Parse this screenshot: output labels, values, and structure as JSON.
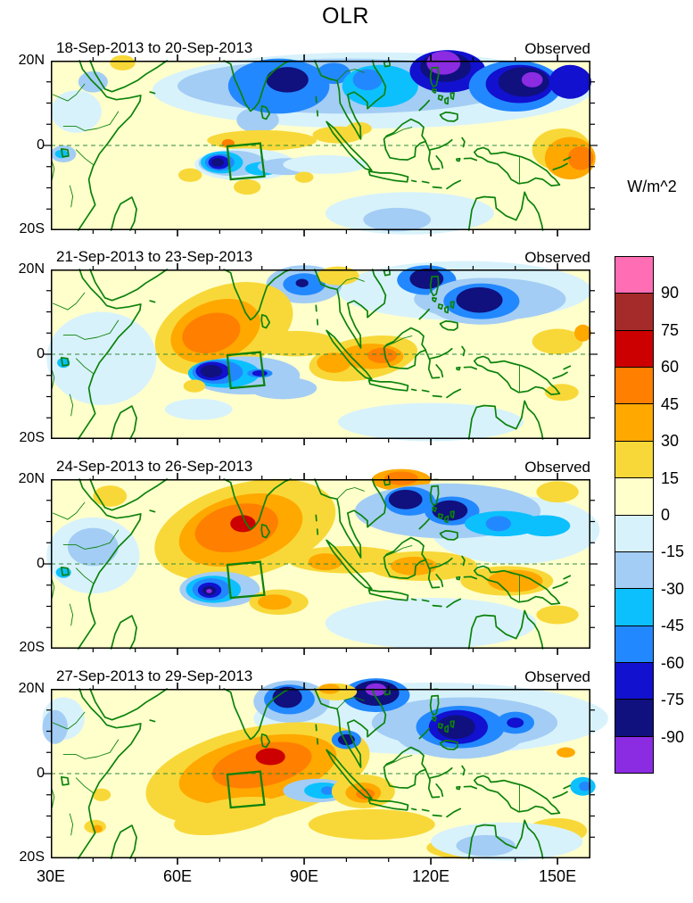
{
  "title": "OLR",
  "colorbar": {
    "units": "W/m^2",
    "tick_labels": [
      "90",
      "75",
      "60",
      "45",
      "30",
      "15",
      "0",
      "-15",
      "-30",
      "-45",
      "-60",
      "-75",
      "-90"
    ],
    "colors": [
      "#ff6eb4",
      "#a52a2a",
      "#cc0000",
      "#ff7f00",
      "#ffa800",
      "#f8d838",
      "#ffffcc",
      "#d8f2fb",
      "#a3cdf4",
      "#0cc0fe",
      "#2288ff",
      "#1111cf",
      "#10107e",
      "#8b2be2"
    ]
  },
  "axes": {
    "lon_range": [
      30,
      157.5
    ],
    "lat_range": [
      -20,
      20
    ],
    "xticks": [
      {
        "label": "30E",
        "lon": 30
      },
      {
        "label": "60E",
        "lon": 60
      },
      {
        "label": "90E",
        "lon": 90
      },
      {
        "label": "120E",
        "lon": 120
      },
      {
        "label": "150E",
        "lon": 150
      }
    ],
    "yticks": [
      {
        "label": "20N",
        "lat": 20
      },
      {
        "label": "0",
        "lat": 0
      },
      {
        "label": "20S",
        "lat": -20
      }
    ]
  },
  "chart_data": {
    "type": "heatmap",
    "title": "OLR",
    "units": "W/m^2",
    "levels": [
      90,
      75,
      60,
      45,
      30,
      15,
      0,
      -15,
      -30,
      -45,
      -60,
      -75,
      -90
    ],
    "region_box": {
      "corners_lon_lat": [
        [
          71.8,
          -0.2
        ],
        [
          79.6,
          0.5
        ],
        [
          80.6,
          -7.3
        ],
        [
          72.6,
          -8.0
        ]
      ]
    },
    "equator_line": 0,
    "panels": [
      {
        "subtitle": "18-Sep-2013 to 20-Sep-2013",
        "source_label": "Observed",
        "features": [
          [
            106,
            13,
            52,
            9,
            7
          ],
          [
            100,
            14,
            40,
            6.5,
            8
          ],
          [
            36,
            8,
            6,
            5,
            7
          ],
          [
            40,
            15,
            3.5,
            2.5,
            8
          ],
          [
            33,
            -2,
            3,
            2,
            8
          ],
          [
            32.5,
            -2,
            1.5,
            1,
            9
          ],
          [
            47,
            19.5,
            3,
            1.8,
            5
          ],
          [
            79,
            6,
            5,
            3,
            8
          ],
          [
            84,
            14,
            12,
            6.5,
            10
          ],
          [
            86,
            15.5,
            5,
            3,
            12
          ],
          [
            97,
            17,
            4,
            2.5,
            10
          ],
          [
            108,
            14,
            9,
            5,
            9
          ],
          [
            105,
            15.5,
            3.5,
            2.5,
            10
          ],
          [
            124,
            17.5,
            9,
            5,
            11
          ],
          [
            123.5,
            18.5,
            6,
            3.5,
            12
          ],
          [
            123,
            19.5,
            4,
            2.8,
            13
          ],
          [
            140,
            14,
            11,
            6,
            10
          ],
          [
            153,
            15,
            5,
            4,
            11
          ],
          [
            141,
            14.5,
            8,
            4.5,
            11
          ],
          [
            142,
            15,
            6,
            3.5,
            12
          ],
          [
            144,
            15.5,
            2.5,
            1.8,
            13
          ],
          [
            80,
            1.2,
            13,
            2.4,
            5
          ],
          [
            72,
            0.5,
            1.5,
            1,
            3
          ],
          [
            98,
            2.5,
            6,
            2,
            5
          ],
          [
            103,
            4,
            3,
            1.5,
            5
          ],
          [
            151,
            -1,
            7,
            5,
            5
          ],
          [
            153,
            -3,
            6,
            5,
            4
          ],
          [
            155.5,
            -3,
            3,
            2.8,
            3
          ],
          [
            76,
            -4.5,
            12,
            3.8,
            7
          ],
          [
            73,
            -4.2,
            8,
            3,
            8
          ],
          [
            70.5,
            -4,
            5,
            2.6,
            9
          ],
          [
            70,
            -4,
            3.5,
            2,
            10
          ],
          [
            69.8,
            -4,
            2.5,
            1.6,
            11
          ],
          [
            69.5,
            -4,
            1.5,
            1,
            12
          ],
          [
            80,
            -5.5,
            4,
            1.6,
            9
          ],
          [
            86,
            -5,
            7,
            2,
            8
          ],
          [
            95,
            -4.5,
            10,
            2.2,
            7
          ],
          [
            63,
            -7,
            2.8,
            1.6,
            5
          ],
          [
            76.5,
            -9.8,
            3.2,
            1.8,
            5
          ],
          [
            90,
            -7.5,
            2.2,
            1.3,
            5
          ],
          [
            115,
            -16,
            20,
            5,
            7
          ],
          [
            112,
            -17.5,
            8,
            2.8,
            8
          ]
        ]
      },
      {
        "subtitle": "21-Sep-2013 to 23-Sep-2013",
        "source_label": "Observed",
        "features": [
          [
            42,
            -1,
            13,
            11,
            7
          ],
          [
            128,
            15,
            30,
            7,
            7
          ],
          [
            134,
            13,
            18,
            5,
            8
          ],
          [
            33,
            -2,
            1.5,
            1.2,
            9
          ],
          [
            90,
            16.5,
            9,
            4.5,
            8
          ],
          [
            90,
            16.5,
            5,
            2.6,
            10
          ],
          [
            89.5,
            16.8,
            1.5,
            1,
            12
          ],
          [
            71,
            6,
            17,
            10,
            5,
            -20
          ],
          [
            69,
            5.5,
            11,
            7,
            4,
            -20
          ],
          [
            68,
            5,
            7,
            4.6,
            3,
            -15
          ],
          [
            88,
            2.5,
            10,
            3,
            5
          ],
          [
            98,
            18.5,
            5,
            2.2,
            5
          ],
          [
            76,
            -5,
            13,
            4.5,
            8
          ],
          [
            71,
            -4.5,
            8.5,
            3.4,
            9
          ],
          [
            69.5,
            -4.2,
            6,
            2.8,
            10
          ],
          [
            68.3,
            -4,
            4,
            2.2,
            11
          ],
          [
            68,
            -4,
            2.6,
            1.5,
            12
          ],
          [
            79.5,
            -4.5,
            3,
            1,
            10
          ],
          [
            79.5,
            -4.5,
            1.8,
            0.7,
            11
          ],
          [
            85,
            -8,
            8,
            2.6,
            8
          ],
          [
            64,
            -7.5,
            2.6,
            1.5,
            5
          ],
          [
            65,
            -13,
            8,
            2.5,
            7
          ],
          [
            119,
            17.5,
            7,
            3.5,
            10
          ],
          [
            119,
            17.8,
            4,
            2.4,
            12
          ],
          [
            132,
            12.5,
            13,
            5.5,
            8
          ],
          [
            132,
            12.5,
            9,
            4.2,
            10
          ],
          [
            131.5,
            12.8,
            5.5,
            3,
            12
          ],
          [
            104,
            -1,
            13,
            5,
            5,
            -10
          ],
          [
            106,
            -0.5,
            7.5,
            3,
            4
          ],
          [
            108.5,
            -0.3,
            3.5,
            1.8,
            3
          ],
          [
            97,
            -2,
            4,
            2.4,
            4
          ],
          [
            150,
            3,
            6,
            3,
            5
          ],
          [
            156,
            5,
            2,
            2,
            4
          ],
          [
            151,
            -9,
            4,
            2,
            5
          ],
          [
            120,
            -16,
            22,
            4.5,
            7
          ]
        ]
      },
      {
        "subtitle": "24-Sep-2013 to 26-Sep-2013",
        "source_label": "Observed",
        "features": [
          [
            40,
            2,
            11,
            9,
            7
          ],
          [
            140,
            8,
            20,
            8,
            7
          ],
          [
            120,
            -14,
            25,
            6,
            7
          ],
          [
            40,
            4,
            6,
            4.5,
            8
          ],
          [
            33,
            -2,
            1.8,
            1.3,
            9
          ],
          [
            44,
            16,
            4,
            2.5,
            5
          ],
          [
            76,
            8,
            22,
            11,
            5,
            -15
          ],
          [
            75,
            8,
            15,
            8,
            4,
            -15
          ],
          [
            74,
            8.5,
            10,
            5.5,
            3,
            -12
          ],
          [
            75.5,
            9.5,
            3,
            2,
            2
          ],
          [
            100,
            1,
            14,
            3.2,
            5
          ],
          [
            95,
            0.5,
            4,
            2,
            4
          ],
          [
            118,
            -0.5,
            13,
            3.5,
            5
          ],
          [
            116,
            -0.5,
            5.5,
            2.2,
            4
          ],
          [
            138,
            -4,
            11,
            3.5,
            5
          ],
          [
            140,
            -4,
            6.5,
            2.6,
            4
          ],
          [
            70,
            -6,
            9.5,
            4.2,
            8
          ],
          [
            68.5,
            -6,
            6.5,
            3.2,
            9
          ],
          [
            68,
            -6,
            4.5,
            2.6,
            10
          ],
          [
            67.6,
            -6.2,
            2.8,
            1.8,
            11
          ],
          [
            67.5,
            -6.3,
            1.6,
            1.1,
            12
          ],
          [
            67.5,
            -6.4,
            0.7,
            0.5,
            13
          ],
          [
            84,
            -9,
            7,
            3,
            5
          ],
          [
            83,
            -9,
            4,
            1.8,
            4
          ],
          [
            113,
            19.8,
            7,
            2.6,
            4
          ],
          [
            113,
            20.2,
            4,
            1.6,
            3
          ],
          [
            124,
            12.5,
            22,
            6.5,
            8
          ],
          [
            115,
            14.8,
            6,
            3.4,
            10
          ],
          [
            114,
            15.2,
            4,
            2.3,
            12
          ],
          [
            125,
            12.5,
            6.5,
            3.4,
            10
          ],
          [
            124.5,
            12.6,
            4.2,
            2.4,
            12
          ],
          [
            137,
            9.5,
            9,
            3,
            9
          ],
          [
            136,
            9.5,
            3,
            1.8,
            10
          ],
          [
            147,
            9,
            6,
            2.5,
            9
          ],
          [
            150,
            17,
            5,
            2.5,
            5
          ],
          [
            150,
            -12,
            5,
            2.2,
            5
          ]
        ]
      },
      {
        "subtitle": "27-Sep-2013 to 29-Sep-2013",
        "source_label": "Observed",
        "features": [
          [
            120,
            13,
            42,
            8.5,
            7
          ],
          [
            128,
            12,
            22,
            6,
            8
          ],
          [
            33,
            13,
            5,
            5,
            7
          ],
          [
            31,
            11,
            3,
            4,
            8
          ],
          [
            87,
            17,
            9,
            5,
            8
          ],
          [
            86.5,
            17.5,
            6,
            3.5,
            10
          ],
          [
            86,
            18,
            3.5,
            2.5,
            12
          ],
          [
            79,
            0,
            27,
            11,
            5,
            -12
          ],
          [
            79,
            1,
            19,
            7.5,
            4,
            -12
          ],
          [
            80,
            2,
            12,
            5,
            3,
            -12
          ],
          [
            82,
            4,
            3.5,
            2,
            2
          ],
          [
            74,
            -8.5,
            9,
            3.2,
            4,
            -10
          ],
          [
            72,
            -10,
            13,
            4,
            5,
            -10
          ],
          [
            42,
            -5,
            2.2,
            1.5,
            5
          ],
          [
            40.5,
            -12.5,
            2.6,
            1.6,
            5
          ],
          [
            41,
            -13,
            1.2,
            0.9,
            4
          ],
          [
            93,
            -4,
            8,
            2.8,
            8
          ],
          [
            94.5,
            -4,
            4.5,
            1.9,
            9
          ],
          [
            95.5,
            -4,
            1.5,
            1,
            10
          ],
          [
            107,
            18.5,
            8,
            4,
            10
          ],
          [
            107,
            19,
            5.5,
            3,
            12
          ],
          [
            107,
            19.8,
            2.5,
            1.5,
            13
          ],
          [
            100,
            8,
            3.5,
            2.2,
            10
          ],
          [
            100,
            8,
            2,
            1.3,
            12
          ],
          [
            127,
            10.5,
            16,
            7,
            8
          ],
          [
            127,
            11,
            10.5,
            5,
            10
          ],
          [
            126.5,
            11,
            7,
            4,
            11
          ],
          [
            126,
            11,
            4.5,
            2.8,
            12
          ],
          [
            140,
            12,
            4.5,
            2.6,
            10
          ],
          [
            140,
            12,
            2,
            1.2,
            11
          ],
          [
            104,
            -4.2,
            7.5,
            4,
            5
          ],
          [
            104,
            -4.5,
            4.2,
            2.4,
            4
          ],
          [
            104.5,
            -4.8,
            2.2,
            1.3,
            3
          ],
          [
            106,
            -12,
            15,
            3.6,
            5
          ],
          [
            128,
            -17.5,
            9,
            2.6,
            5
          ],
          [
            150,
            -13.5,
            7,
            3,
            5
          ],
          [
            97.5,
            19.3,
            5,
            2,
            5
          ],
          [
            96,
            20,
            2.5,
            1.2,
            4
          ],
          [
            152,
            5,
            2.2,
            1.2,
            4
          ],
          [
            138,
            -16,
            18,
            4.5,
            7
          ],
          [
            133,
            -17,
            7,
            2.5,
            8
          ],
          [
            156,
            -3,
            3,
            2.2,
            9
          ],
          [
            156.5,
            -3,
            1.4,
            1.1,
            10
          ]
        ]
      }
    ]
  }
}
